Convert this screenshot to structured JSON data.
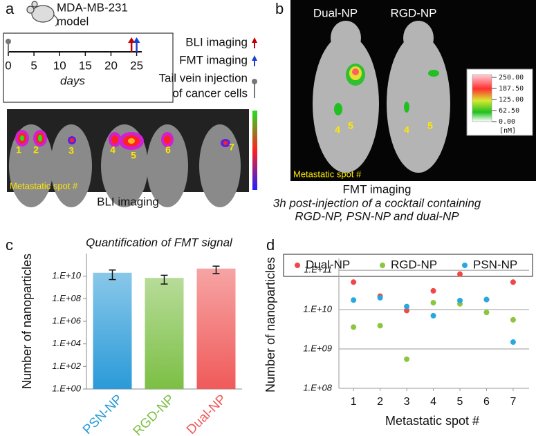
{
  "panel_a": {
    "label": "a",
    "model": [
      "MDA-MB-231",
      "model"
    ],
    "timeline": {
      "xlim": [
        0,
        26
      ],
      "ticks": [
        0,
        5,
        10,
        15,
        20,
        25
      ],
      "xlabel": "days",
      "events": [
        {
          "name": [
            "BLI imaging"
          ],
          "day": 24,
          "color": "#c00000",
          "kind": "arrow"
        },
        {
          "name": [
            "FMT imaging"
          ],
          "day": 25,
          "color": "#1f3fcf",
          "kind": "arrow"
        },
        {
          "name": [
            "Tail vein injection",
            "of cancer cells"
          ],
          "day": 0,
          "color": "#777777",
          "kind": "pin"
        }
      ]
    },
    "spots": [
      "1",
      "2",
      "3",
      "4",
      "5",
      "6",
      "7"
    ],
    "image_label": "Metastatic spot #",
    "caption": "BLI imaging"
  },
  "panel_b": {
    "label": "b",
    "groups": [
      "Dual-NP",
      "RGD-NP"
    ],
    "spots": [
      "4",
      "5",
      "4",
      "5"
    ],
    "image_label": "Metastatic spot #",
    "colorbar": {
      "lim": [
        0,
        250
      ],
      "ticks": [
        {
          "value": 250,
          "label": "250.00"
        },
        {
          "value": 187.5,
          "label": "187.50"
        },
        {
          "value": 125,
          "label": "125.00"
        },
        {
          "value": 62.5,
          "label": "62.50"
        },
        {
          "value": 0,
          "label": "0.00"
        }
      ],
      "unit": "[nM]"
    },
    "caption": [
      "FMT imaging",
      "3h post-injection of a cocktail containing",
      "RGD-NP, PSN-NP and dual-NP"
    ]
  },
  "chart_data": [
    {
      "label": "c",
      "type": "bar",
      "title": "Quantification of FMT signal",
      "ylabel": "Number of nanoparticles",
      "log_scale": true,
      "categories": [
        "PSN-NP",
        "RGD-NP",
        "Dual-NP"
      ],
      "values": [
        20000000000,
        7000000000,
        47000000000
      ],
      "errors": [
        15000000000,
        5000000000,
        30000000000
      ],
      "colors": [
        "#2a9ad8",
        "#7cbf45",
        "#f05a5a"
      ],
      "ylim": [
        1,
        1000000000000
      ],
      "yticks": [
        {
          "value": 1,
          "label": "1.E+00"
        },
        {
          "value": 100,
          "label": "1.E+02"
        },
        {
          "value": 10000,
          "label": "1.E+04"
        },
        {
          "value": 1000000,
          "label": "1.E+06"
        },
        {
          "value": 100000000,
          "label": "1.E+08"
        },
        {
          "value": 10000000000,
          "label": "1.E+10"
        }
      ]
    },
    {
      "label": "d",
      "type": "scatter",
      "xlabel": "Metastatic spot #",
      "ylabel": "Number of nanoparticles",
      "log_scale": true,
      "grid": true,
      "legend": "top",
      "x": [
        1,
        2,
        3,
        4,
        5,
        6,
        7
      ],
      "xlim": [
        0.45,
        7.6
      ],
      "xticks": [
        1,
        2,
        3,
        4,
        5,
        6,
        7
      ],
      "ylim": [
        100000000,
        200000000000
      ],
      "yticks": [
        {
          "value": 100000000,
          "label": "1.E+08"
        },
        {
          "value": 1000000000,
          "label": "1.E+09"
        },
        {
          "value": 10000000000,
          "label": "1.E+10"
        },
        {
          "value": 100000000000,
          "label": "1.E+11"
        }
      ],
      "series": [
        {
          "name": "Dual-NP",
          "color": "#f04848",
          "values": [
            50000000000,
            22000000000,
            9500000000,
            30000000000,
            80000000000,
            18000000000,
            50000000000
          ]
        },
        {
          "name": "RGD-NP",
          "color": "#8cc63f",
          "values": [
            3600000000,
            3900000000,
            550000000,
            15000000000,
            14000000000,
            8500000000,
            5500000000
          ]
        },
        {
          "name": "PSN-NP",
          "color": "#29a8e0",
          "values": [
            17500000000,
            20000000000,
            12000000000,
            7000000000,
            17000000000,
            18000000000,
            1500000000
          ]
        }
      ]
    }
  ]
}
